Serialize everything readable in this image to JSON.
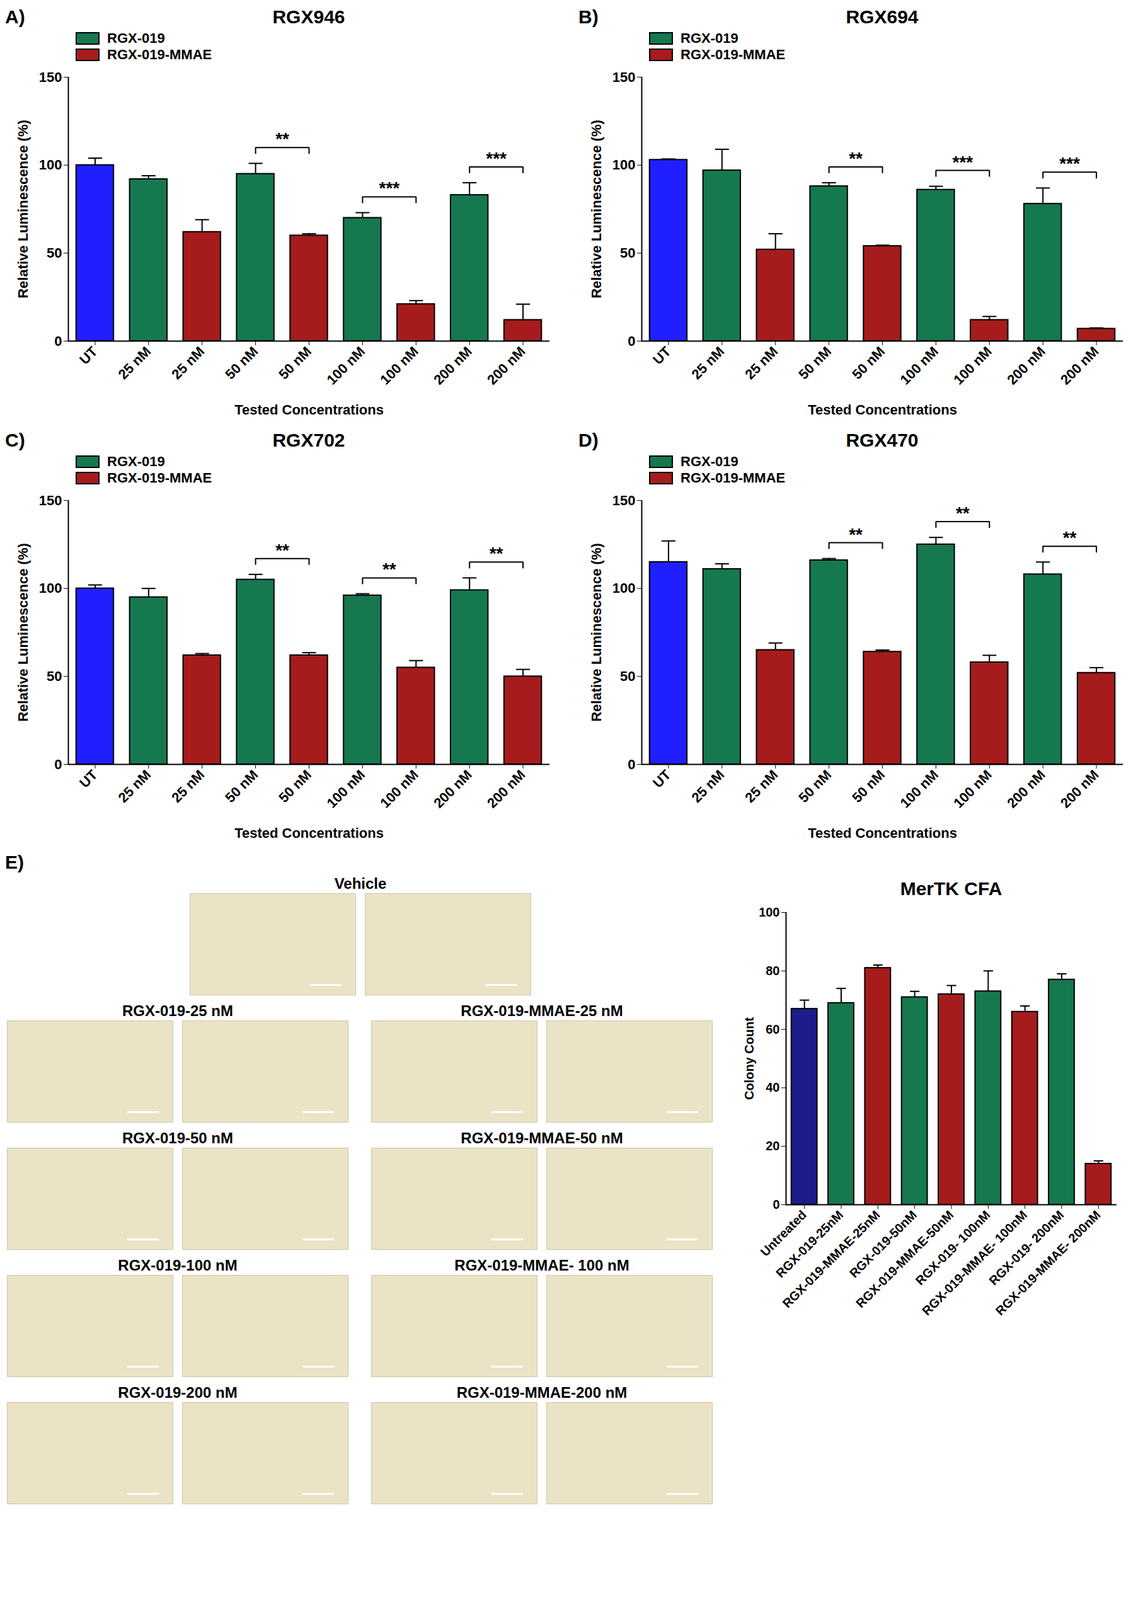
{
  "chart_data": [
    {
      "type": "bar",
      "panel": "A)",
      "title": "RGX946",
      "categories": [
        "UT",
        "25 nM",
        "25 nM",
        "50 nM",
        "50 nM",
        "100 nM",
        "100 nM",
        "200 nM",
        "200 nM"
      ],
      "values": [
        100,
        92,
        62,
        95,
        60,
        70,
        21,
        83,
        12
      ],
      "errors": [
        4,
        2,
        7,
        6,
        1,
        3,
        2,
        7,
        9
      ],
      "colors": [
        "#1f1fff",
        "#15784e",
        "#a61c1c",
        "#15784e",
        "#a61c1c",
        "#15784e",
        "#a61c1c",
        "#15784e",
        "#a61c1c"
      ],
      "legend_items": [
        {
          "name": "RGX-019",
          "color": "#15784e"
        },
        {
          "name": "RGX-019-MMAE",
          "color": "#a61c1c"
        }
      ],
      "legend": "top-left",
      "xlabel": "Tested Concentrations",
      "ylabel": "Relative Luminescence (%)",
      "ylim": [
        0,
        150
      ],
      "yticks": [
        0,
        50,
        100,
        150
      ],
      "annotations": [
        {
          "from": 3,
          "to": 4,
          "label": "**"
        },
        {
          "from": 5,
          "to": 6,
          "label": "***"
        },
        {
          "from": 7,
          "to": 8,
          "label": "***"
        }
      ]
    },
    {
      "type": "bar",
      "panel": "B)",
      "title": "RGX694",
      "categories": [
        "UT",
        "25 nM",
        "25 nM",
        "50 nM",
        "50 nM",
        "100 nM",
        "100 nM",
        "200 nM",
        "200 nM"
      ],
      "values": [
        103,
        97,
        52,
        88,
        54,
        86,
        12,
        78,
        7
      ],
      "errors": [
        0.5,
        12,
        9,
        2,
        0.5,
        2,
        2,
        9,
        0.5
      ],
      "colors": [
        "#1f1fff",
        "#15784e",
        "#a61c1c",
        "#15784e",
        "#a61c1c",
        "#15784e",
        "#a61c1c",
        "#15784e",
        "#a61c1c"
      ],
      "legend_items": [
        {
          "name": "RGX-019",
          "color": "#15784e"
        },
        {
          "name": "RGX-019-MMAE",
          "color": "#a61c1c"
        }
      ],
      "legend": "top-left",
      "xlabel": "Tested Concentrations",
      "ylabel": "Relative Luminescence (%)",
      "ylim": [
        0,
        150
      ],
      "yticks": [
        0,
        50,
        100,
        150
      ],
      "annotations": [
        {
          "from": 3,
          "to": 4,
          "label": "**"
        },
        {
          "from": 5,
          "to": 6,
          "label": "***"
        },
        {
          "from": 7,
          "to": 8,
          "label": "***"
        }
      ]
    },
    {
      "type": "bar",
      "panel": "C)",
      "title": "RGX702",
      "categories": [
        "UT",
        "25 nM",
        "25 nM",
        "50 nM",
        "50 nM",
        "100 nM",
        "100 nM",
        "200 nM",
        "200 nM"
      ],
      "values": [
        100,
        95,
        62,
        105,
        62,
        96,
        55,
        99,
        50
      ],
      "errors": [
        2,
        5,
        1,
        3,
        1.5,
        1,
        4,
        7,
        4
      ],
      "colors": [
        "#1f1fff",
        "#15784e",
        "#a61c1c",
        "#15784e",
        "#a61c1c",
        "#15784e",
        "#a61c1c",
        "#15784e",
        "#a61c1c"
      ],
      "legend_items": [
        {
          "name": "RGX-019",
          "color": "#15784e"
        },
        {
          "name": "RGX-019-MMAE",
          "color": "#a61c1c"
        }
      ],
      "legend": "top-left",
      "xlabel": "Tested Concentrations",
      "ylabel": "Relative Luminescence (%)",
      "ylim": [
        0,
        150
      ],
      "yticks": [
        0,
        50,
        100,
        150
      ],
      "annotations": [
        {
          "from": 3,
          "to": 4,
          "label": "**"
        },
        {
          "from": 5,
          "to": 6,
          "label": "**"
        },
        {
          "from": 7,
          "to": 8,
          "label": "**"
        }
      ]
    },
    {
      "type": "bar",
      "panel": "D)",
      "title": "RGX470",
      "categories": [
        "UT",
        "25 nM",
        "25 nM",
        "50 nM",
        "50 nM",
        "100 nM",
        "100 nM",
        "200 nM",
        "200 nM"
      ],
      "values": [
        115,
        111,
        65,
        116,
        64,
        125,
        58,
        108,
        52
      ],
      "errors": [
        12,
        3,
        4,
        1,
        1,
        4,
        4,
        7,
        3
      ],
      "colors": [
        "#1f1fff",
        "#15784e",
        "#a61c1c",
        "#15784e",
        "#a61c1c",
        "#15784e",
        "#a61c1c",
        "#15784e",
        "#a61c1c"
      ],
      "legend_items": [
        {
          "name": "RGX-019",
          "color": "#15784e"
        },
        {
          "name": "RGX-019-MMAE",
          "color": "#a61c1c"
        }
      ],
      "legend": "top-left",
      "xlabel": "Tested Concentrations",
      "ylabel": "Relative Luminescence (%)",
      "ylim": [
        0,
        150
      ],
      "yticks": [
        0,
        50,
        100,
        150
      ],
      "annotations": [
        {
          "from": 3,
          "to": 4,
          "label": "**"
        },
        {
          "from": 5,
          "to": 6,
          "label": "**"
        },
        {
          "from": 7,
          "to": 8,
          "label": "**"
        }
      ]
    },
    {
      "type": "bar",
      "title": "MerTK CFA",
      "categories": [
        "Untreated",
        "RGX-019-25nM",
        "RGX-019-MMAE-25nM",
        "RGX-019-50nM",
        "RGX-019-MMAE-50nM",
        "RGX-019- 100nM",
        "RGX-019-MMAE- 100nM",
        "RGX-019- 200nM",
        "RGX-019-MMAE- 200nM"
      ],
      "values": [
        67,
        69,
        81,
        71,
        72,
        73,
        66,
        77,
        14
      ],
      "errors": [
        3,
        5,
        1,
        2,
        3,
        7,
        2,
        2,
        1
      ],
      "colors": [
        "#1c1c8c",
        "#15784e",
        "#a61c1c",
        "#15784e",
        "#a61c1c",
        "#15784e",
        "#a61c1c",
        "#15784e",
        "#a61c1c"
      ],
      "ylabel": "Colony Count",
      "ylim": [
        0,
        100
      ],
      "yticks": [
        0,
        20,
        40,
        60,
        80,
        100
      ]
    }
  ],
  "images": {
    "panel": "E)",
    "groups": [
      {
        "title": "Vehicle"
      },
      {
        "title": "RGX-019-25 nM"
      },
      {
        "title": "RGX-019-MMAE-25 nM"
      },
      {
        "title": "RGX-019-50 nM"
      },
      {
        "title": "RGX-019-MMAE-50 nM"
      },
      {
        "title": "RGX-019-100 nM"
      },
      {
        "title": "RGX-019-MMAE- 100 nM"
      },
      {
        "title": "RGX-019-200 nM"
      },
      {
        "title": "RGX-019-MMAE-200 nM"
      }
    ]
  }
}
